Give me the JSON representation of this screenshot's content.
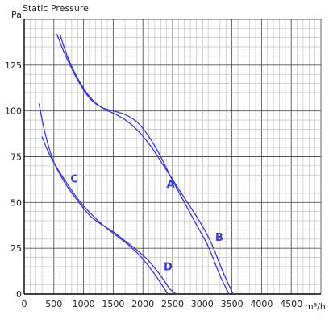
{
  "chart_data": {
    "type": "line",
    "title": "Static Pressure",
    "ylabel": "Pa",
    "xlabel": "m³/h",
    "xlim": [
      0,
      5000
    ],
    "ylim": [
      0,
      150
    ],
    "x_ticks": [
      0,
      500,
      1000,
      1500,
      2000,
      2500,
      3000,
      3500,
      4000,
      4500
    ],
    "y_ticks": [
      0,
      25,
      50,
      75,
      100,
      125
    ],
    "x_tick_labels": [
      "0",
      "500",
      "1000",
      "1500",
      "2000",
      "2500",
      "3000",
      "3500",
      "4000",
      "4500"
    ],
    "y_tick_labels": [
      "0",
      "25",
      "50",
      "75",
      "100",
      "125"
    ],
    "grid": true,
    "line_color": "#3a3ac8",
    "series": [
      {
        "name": "A",
        "label_at": [
          2400,
          58
        ],
        "x": [
          550,
          700,
          900,
          1100,
          1300,
          1500,
          1700,
          1900,
          2100,
          2300,
          2500,
          2700,
          2900,
          3100,
          3300,
          3450
        ],
        "y": [
          142,
          130,
          117,
          107,
          102,
          100,
          98,
          94,
          86,
          75,
          62,
          50,
          38,
          26,
          10,
          0
        ]
      },
      {
        "name": "B",
        "label_at": [
          3220,
          29
        ],
        "x": [
          600,
          750,
          950,
          1150,
          1350,
          1550,
          1750,
          1950,
          2150,
          2350,
          2550,
          2750,
          2950,
          3150,
          3350,
          3520
        ],
        "y": [
          142,
          128,
          115,
          106,
          101,
          98,
          94,
          88,
          80,
          70,
          60,
          50,
          40,
          28,
          12,
          0
        ]
      },
      {
        "name": "C",
        "label_at": [
          780,
          61
        ],
        "x": [
          250,
          350,
          500,
          700,
          900,
          1100,
          1300,
          1500,
          1700,
          1900,
          2100,
          2300,
          2450,
          2560
        ],
        "y": [
          104,
          88,
          72,
          60,
          51,
          43,
          38,
          34,
          29,
          24,
          18,
          10,
          3,
          0
        ]
      },
      {
        "name": "D",
        "label_at": [
          2350,
          13
        ],
        "x": [
          300,
          400,
          550,
          750,
          950,
          1150,
          1350,
          1550,
          1750,
          1950,
          2150,
          2300,
          2420
        ],
        "y": [
          86,
          78,
          69,
          59,
          50,
          43,
          37,
          32,
          27,
          21,
          13,
          6,
          0
        ]
      }
    ]
  }
}
